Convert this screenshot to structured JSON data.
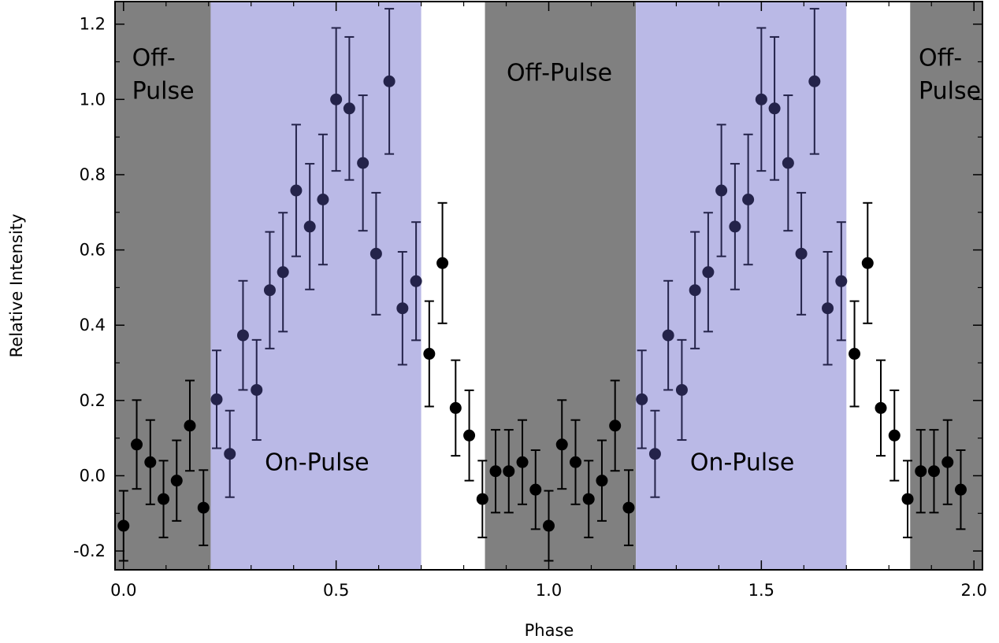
{
  "chart_data": {
    "type": "scatter",
    "title": "",
    "xlabel": "Phase",
    "ylabel": "Relative Intensity",
    "xlim": [
      -0.02,
      2.02
    ],
    "ylim": [
      -0.25,
      1.26
    ],
    "grid": false,
    "legend": "none",
    "x_ticks": [
      {
        "value": 0.0,
        "label": "0.0"
      },
      {
        "value": 0.5,
        "label": "0.5"
      },
      {
        "value": 1.0,
        "label": "1.0"
      },
      {
        "value": 1.5,
        "label": "1.5"
      },
      {
        "value": 2.0,
        "label": "2.0"
      }
    ],
    "y_ticks": [
      {
        "value": -0.2,
        "label": "-0.2"
      },
      {
        "value": 0.0,
        "label": "0.0"
      },
      {
        "value": 0.2,
        "label": "0.2"
      },
      {
        "value": 0.4,
        "label": "0.4"
      },
      {
        "value": 0.6,
        "label": "0.6"
      },
      {
        "value": 0.8,
        "label": "0.8"
      },
      {
        "value": 1.0,
        "label": "1.0"
      },
      {
        "value": 1.2,
        "label": "1.2"
      }
    ],
    "regions": [
      {
        "kind": "off",
        "x": [
          -0.02,
          0.205
        ],
        "color": "#808080"
      },
      {
        "kind": "on",
        "x": [
          0.205,
          0.7
        ],
        "color": "#bab9e6"
      },
      {
        "kind": "off",
        "x": [
          0.85,
          1.205
        ],
        "color": "#808080"
      },
      {
        "kind": "on",
        "x": [
          1.205,
          1.7
        ],
        "color": "#bab9e6"
      },
      {
        "kind": "off",
        "x": [
          1.85,
          2.02
        ],
        "color": "#808080"
      }
    ],
    "region_labels": [
      {
        "lines": [
          "Off-",
          "Pulse"
        ],
        "x": 0.02,
        "y": 1.09,
        "anchor": "start"
      },
      {
        "lines": [
          "On-Pulse"
        ],
        "x": 0.455,
        "y": 0.015,
        "anchor": "middle"
      },
      {
        "lines": [
          "Off-Pulse"
        ],
        "x": 1.025,
        "y": 1.05,
        "anchor": "middle"
      },
      {
        "lines": [
          "On-Pulse"
        ],
        "x": 1.455,
        "y": 0.015,
        "anchor": "middle"
      },
      {
        "lines": [
          "Off-",
          "Pulse"
        ],
        "x": 1.87,
        "y": 1.09,
        "anchor": "start"
      }
    ],
    "series": [
      {
        "marker_color_on": "#24234a",
        "marker_color_off": "#000000",
        "points": [
          {
            "x": 0.0,
            "y": -0.133,
            "err": 0.093
          },
          {
            "x": 0.031,
            "y": 0.083,
            "err": 0.118
          },
          {
            "x": 0.063,
            "y": 0.036,
            "err": 0.112
          },
          {
            "x": 0.094,
            "y": -0.062,
            "err": 0.102
          },
          {
            "x": 0.125,
            "y": -0.013,
            "err": 0.107
          },
          {
            "x": 0.156,
            "y": 0.133,
            "err": 0.12
          },
          {
            "x": 0.188,
            "y": -0.085,
            "err": 0.1
          },
          {
            "x": 0.219,
            "y": 0.203,
            "err": 0.13
          },
          {
            "x": 0.25,
            "y": 0.058,
            "err": 0.115
          },
          {
            "x": 0.281,
            "y": 0.373,
            "err": 0.145
          },
          {
            "x": 0.313,
            "y": 0.228,
            "err": 0.133
          },
          {
            "x": 0.344,
            "y": 0.493,
            "err": 0.155
          },
          {
            "x": 0.375,
            "y": 0.541,
            "err": 0.158
          },
          {
            "x": 0.406,
            "y": 0.758,
            "err": 0.175
          },
          {
            "x": 0.438,
            "y": 0.662,
            "err": 0.167
          },
          {
            "x": 0.469,
            "y": 0.734,
            "err": 0.173
          },
          {
            "x": 0.5,
            "y": 1.0,
            "err": 0.19
          },
          {
            "x": 0.531,
            "y": 0.976,
            "err": 0.19
          },
          {
            "x": 0.563,
            "y": 0.831,
            "err": 0.18
          },
          {
            "x": 0.594,
            "y": 0.59,
            "err": 0.162
          },
          {
            "x": 0.625,
            "y": 1.048,
            "err": 0.193
          },
          {
            "x": 0.656,
            "y": 0.445,
            "err": 0.15
          },
          {
            "x": 0.688,
            "y": 0.517,
            "err": 0.157
          },
          {
            "x": 0.719,
            "y": 0.324,
            "err": 0.14
          },
          {
            "x": 0.75,
            "y": 0.565,
            "err": 0.16
          },
          {
            "x": 0.781,
            "y": 0.18,
            "err": 0.127
          },
          {
            "x": 0.813,
            "y": 0.107,
            "err": 0.12
          },
          {
            "x": 0.844,
            "y": -0.062,
            "err": 0.102
          },
          {
            "x": 0.875,
            "y": 0.012,
            "err": 0.11
          },
          {
            "x": 0.906,
            "y": 0.012,
            "err": 0.11
          },
          {
            "x": 0.938,
            "y": 0.036,
            "err": 0.112
          },
          {
            "x": 0.969,
            "y": -0.037,
            "err": 0.105
          },
          {
            "x": 1.0,
            "y": -0.133,
            "err": 0.093
          },
          {
            "x": 1.031,
            "y": 0.083,
            "err": 0.118
          },
          {
            "x": 1.063,
            "y": 0.036,
            "err": 0.112
          },
          {
            "x": 1.094,
            "y": -0.062,
            "err": 0.102
          },
          {
            "x": 1.125,
            "y": -0.013,
            "err": 0.107
          },
          {
            "x": 1.156,
            "y": 0.133,
            "err": 0.12
          },
          {
            "x": 1.188,
            "y": -0.085,
            "err": 0.1
          },
          {
            "x": 1.219,
            "y": 0.203,
            "err": 0.13
          },
          {
            "x": 1.25,
            "y": 0.058,
            "err": 0.115
          },
          {
            "x": 1.281,
            "y": 0.373,
            "err": 0.145
          },
          {
            "x": 1.313,
            "y": 0.228,
            "err": 0.133
          },
          {
            "x": 1.344,
            "y": 0.493,
            "err": 0.155
          },
          {
            "x": 1.375,
            "y": 0.541,
            "err": 0.158
          },
          {
            "x": 1.406,
            "y": 0.758,
            "err": 0.175
          },
          {
            "x": 1.438,
            "y": 0.662,
            "err": 0.167
          },
          {
            "x": 1.469,
            "y": 0.734,
            "err": 0.173
          },
          {
            "x": 1.5,
            "y": 1.0,
            "err": 0.19
          },
          {
            "x": 1.531,
            "y": 0.976,
            "err": 0.19
          },
          {
            "x": 1.563,
            "y": 0.831,
            "err": 0.18
          },
          {
            "x": 1.594,
            "y": 0.59,
            "err": 0.162
          },
          {
            "x": 1.625,
            "y": 1.048,
            "err": 0.193
          },
          {
            "x": 1.656,
            "y": 0.445,
            "err": 0.15
          },
          {
            "x": 1.688,
            "y": 0.517,
            "err": 0.157
          },
          {
            "x": 1.719,
            "y": 0.324,
            "err": 0.14
          },
          {
            "x": 1.75,
            "y": 0.565,
            "err": 0.16
          },
          {
            "x": 1.781,
            "y": 0.18,
            "err": 0.127
          },
          {
            "x": 1.813,
            "y": 0.107,
            "err": 0.12
          },
          {
            "x": 1.844,
            "y": -0.062,
            "err": 0.102
          },
          {
            "x": 1.875,
            "y": 0.012,
            "err": 0.11
          },
          {
            "x": 1.906,
            "y": 0.012,
            "err": 0.11
          },
          {
            "x": 1.938,
            "y": 0.036,
            "err": 0.112
          },
          {
            "x": 1.969,
            "y": -0.037,
            "err": 0.105
          }
        ]
      }
    ]
  }
}
